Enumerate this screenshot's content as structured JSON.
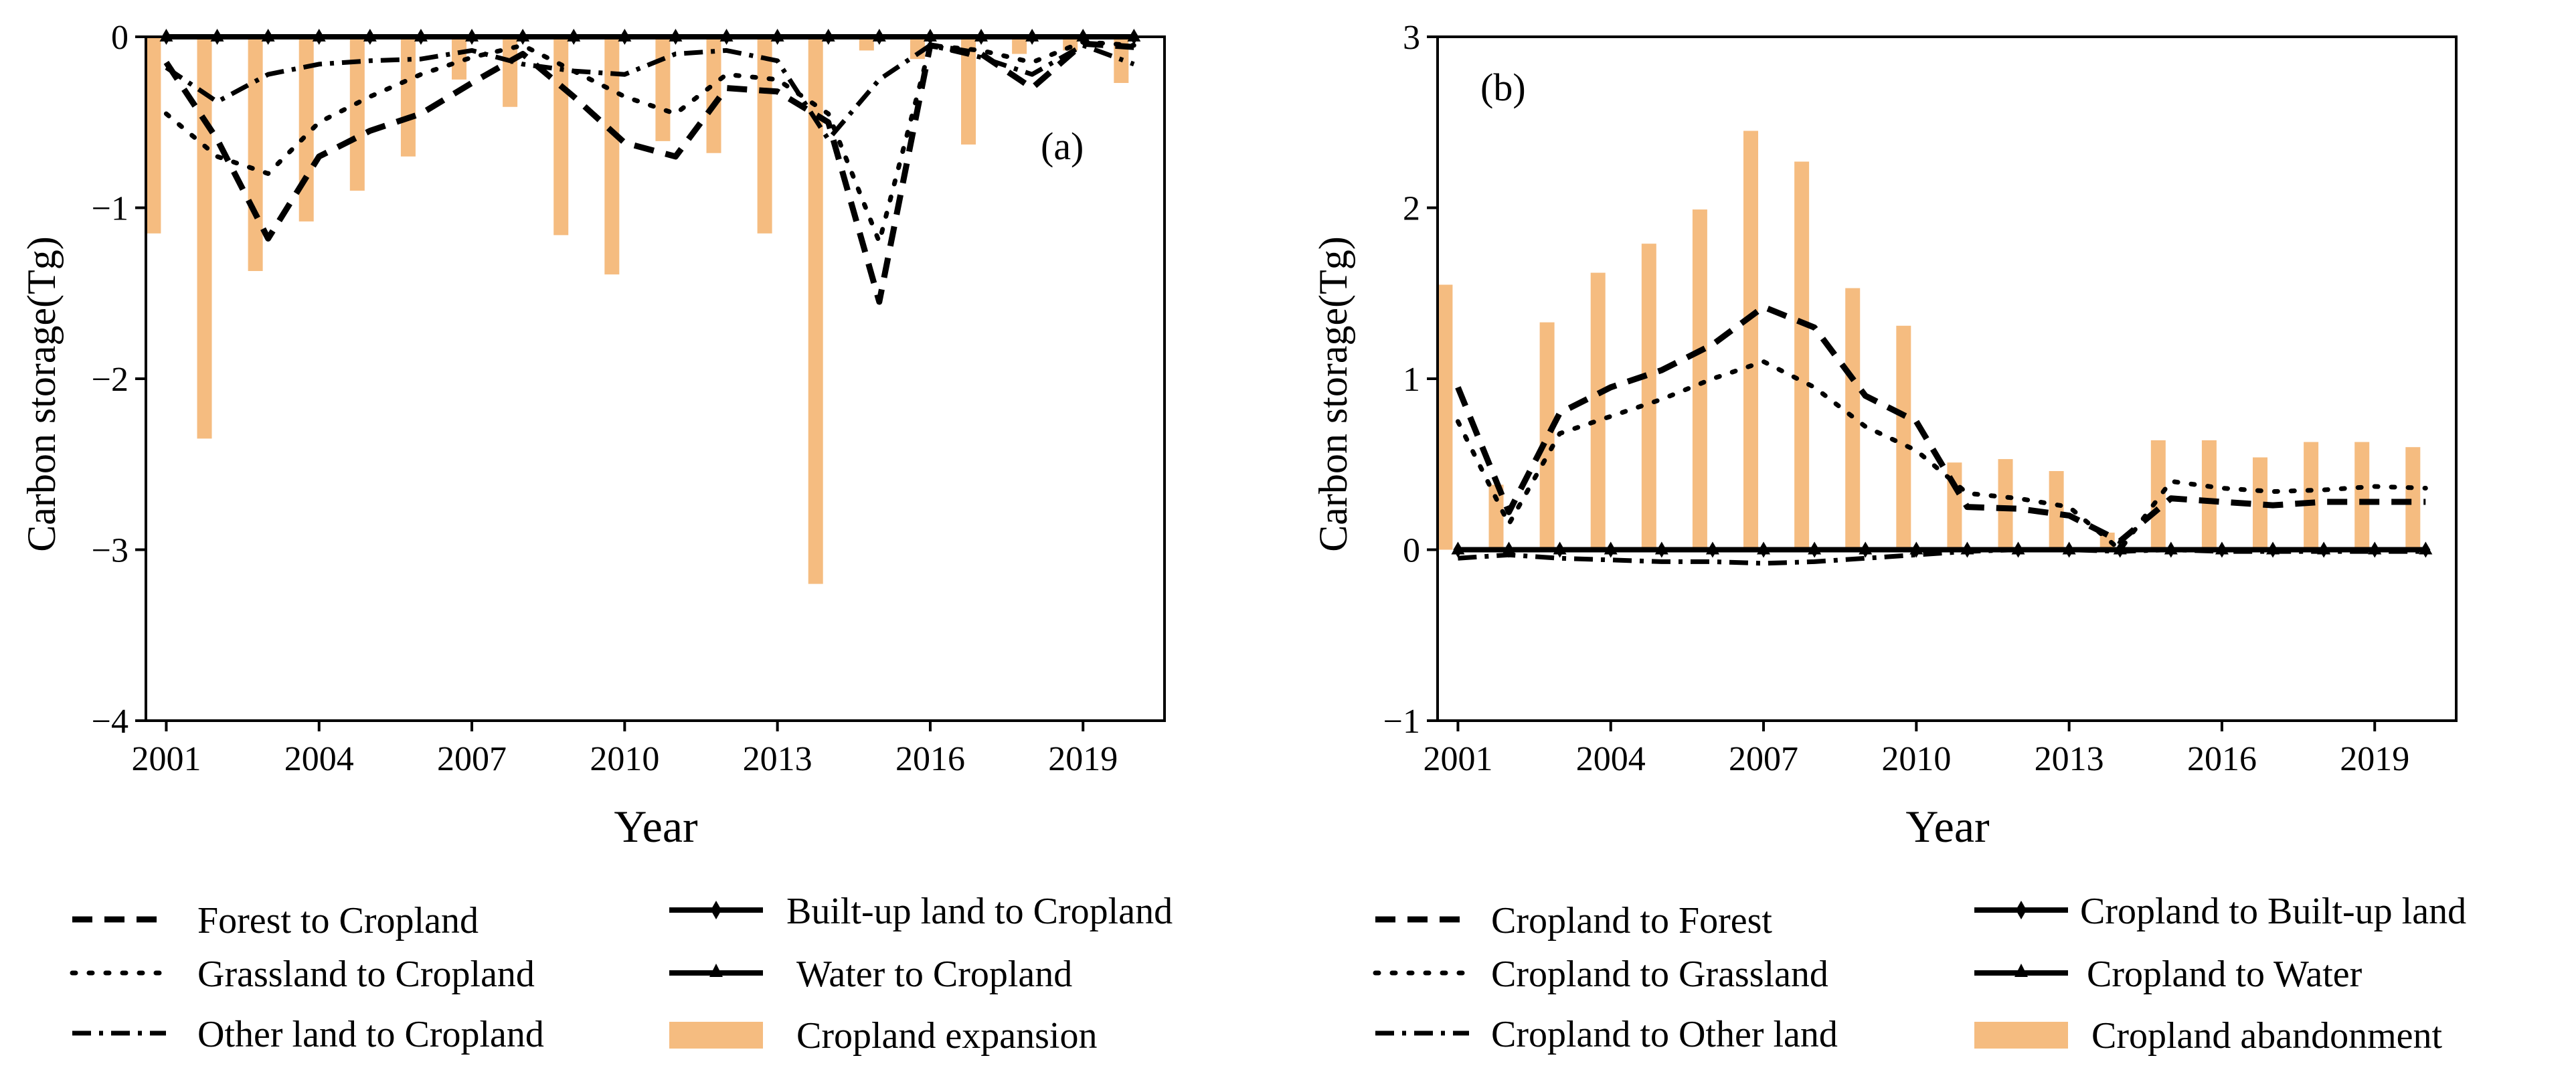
{
  "chart_data": [
    {
      "type": "bar+line",
      "panel_label": "(a)",
      "xlabel": "Year",
      "ylabel": "Carbon storage(Tg)",
      "ylim": [
        -4,
        0
      ],
      "yticks": [
        -4,
        -3,
        -2,
        -1,
        0
      ],
      "ytick_labels": [
        "−4",
        "−3",
        "−2",
        "−1",
        "0"
      ],
      "xlim": [
        2000.6,
        2020.6
      ],
      "xticks": [
        2001,
        2004,
        2007,
        2010,
        2013,
        2016,
        2019
      ],
      "xtick_labels": [
        "2001",
        "2004",
        "2007",
        "2010",
        "2013",
        "2016",
        "2019"
      ],
      "x": [
        2001,
        2002,
        2003,
        2004,
        2005,
        2006,
        2007,
        2008,
        2009,
        2010,
        2011,
        2012,
        2013,
        2014,
        2015,
        2016,
        2017,
        2018,
        2019,
        2020
      ],
      "bars": {
        "name": "Cropland expansion",
        "color": "#f5bc80",
        "x": [
          2000.75,
          2001.75,
          2002.75,
          2003.75,
          2004.75,
          2005.75,
          2006.75,
          2007.75,
          2008.75,
          2009.75,
          2010.75,
          2011.75,
          2012.75,
          2013.75,
          2014.75,
          2015.75,
          2016.75,
          2017.75,
          2018.75,
          2019.75
        ],
        "values": [
          -1.15,
          -2.35,
          -1.37,
          -1.08,
          -0.9,
          -0.7,
          -0.25,
          -0.41,
          -1.16,
          -1.39,
          -0.61,
          -0.68,
          -1.15,
          -3.2,
          -0.08,
          -0.13,
          -0.63,
          -0.1,
          -0.08,
          -0.27
        ]
      },
      "series": [
        {
          "name": "Forest to Cropland",
          "style": "dashed",
          "values": [
            -0.15,
            -0.6,
            -1.18,
            -0.7,
            -0.55,
            -0.45,
            -0.27,
            -0.1,
            -0.35,
            -0.62,
            -0.7,
            -0.3,
            -0.32,
            -0.5,
            -1.55,
            -0.05,
            -0.1,
            -0.3,
            -0.04,
            -0.06
          ]
        },
        {
          "name": "Grassland to Cropland",
          "style": "dotted",
          "values": [
            -0.45,
            -0.7,
            -0.8,
            -0.5,
            -0.35,
            -0.22,
            -0.12,
            -0.05,
            -0.2,
            -0.35,
            -0.45,
            -0.22,
            -0.25,
            -0.45,
            -1.2,
            -0.05,
            -0.08,
            -0.15,
            -0.03,
            -0.05
          ]
        },
        {
          "name": "Other land to Cropland",
          "style": "dashdot",
          "values": [
            -0.18,
            -0.38,
            -0.22,
            -0.16,
            -0.14,
            -0.13,
            -0.08,
            -0.16,
            -0.2,
            -0.22,
            -0.1,
            -0.08,
            -0.14,
            -0.6,
            -0.25,
            -0.05,
            -0.12,
            -0.22,
            -0.05,
            -0.16
          ]
        },
        {
          "name": "Built-up land to Cropland",
          "style": "solid-diamond",
          "values": [
            0,
            0,
            0,
            0,
            0,
            0,
            0,
            0,
            0,
            0,
            0,
            0,
            0,
            0,
            0,
            0,
            0,
            0,
            0,
            0
          ]
        },
        {
          "name": "Water to Cropland",
          "style": "solid-triangle",
          "values": [
            0,
            0,
            0,
            0,
            0,
            0,
            0,
            0,
            0,
            0,
            0,
            0,
            0,
            0,
            0,
            0,
            0,
            0,
            0,
            0
          ]
        }
      ],
      "legend": [
        "Forest to Cropland",
        "Grassland to Cropland",
        "Other land to Cropland",
        "Built-up land to Cropland",
        "Water to Cropland",
        "Cropland expansion"
      ]
    },
    {
      "type": "bar+line",
      "panel_label": "(b)",
      "xlabel": "Year",
      "ylabel": "Carbon storage(Tg)",
      "ylim": [
        -1,
        3
      ],
      "yticks": [
        -1,
        0,
        1,
        2,
        3
      ],
      "ytick_labels": [
        "−1",
        "0",
        "1",
        "2",
        "3"
      ],
      "xlim": [
        2000.6,
        2020.6
      ],
      "xticks": [
        2001,
        2004,
        2007,
        2010,
        2013,
        2016,
        2019
      ],
      "xtick_labels": [
        "2001",
        "2004",
        "2007",
        "2010",
        "2013",
        "2016",
        "2019"
      ],
      "x": [
        2001,
        2002,
        2003,
        2004,
        2005,
        2006,
        2007,
        2008,
        2009,
        2010,
        2011,
        2012,
        2013,
        2014,
        2015,
        2016,
        2017,
        2018,
        2019,
        2020
      ],
      "bars": {
        "name": "Cropland abandonment",
        "color": "#f5bc80",
        "x": [
          2000.75,
          2001.75,
          2002.75,
          2003.75,
          2004.75,
          2005.75,
          2006.75,
          2007.75,
          2008.75,
          2009.75,
          2010.75,
          2011.75,
          2012.75,
          2013.75,
          2014.75,
          2015.75,
          2016.75,
          2017.75,
          2018.75,
          2019.75
        ],
        "values": [
          1.55,
          0.38,
          1.33,
          1.62,
          1.79,
          1.99,
          2.45,
          2.27,
          1.53,
          1.31,
          0.51,
          0.53,
          0.46,
          0.1,
          0.64,
          0.64,
          0.54,
          0.63,
          0.63,
          0.6
        ]
      },
      "series": [
        {
          "name": "Cropland to Forest",
          "style": "dashed",
          "values": [
            0.95,
            0.22,
            0.8,
            0.95,
            1.05,
            1.2,
            1.42,
            1.3,
            0.9,
            0.75,
            0.25,
            0.24,
            0.2,
            0.05,
            0.3,
            0.28,
            0.26,
            0.28,
            0.28,
            0.28
          ]
        },
        {
          "name": "Cropland to Grassland",
          "style": "dotted",
          "values": [
            0.75,
            0.15,
            0.68,
            0.78,
            0.88,
            1.0,
            1.1,
            0.95,
            0.72,
            0.58,
            0.33,
            0.3,
            0.25,
            0.0,
            0.4,
            0.36,
            0.34,
            0.35,
            0.37,
            0.36
          ]
        },
        {
          "name": "Cropland to Other land",
          "style": "dashdot",
          "values": [
            -0.05,
            -0.03,
            -0.05,
            -0.06,
            -0.07,
            -0.07,
            -0.08,
            -0.07,
            -0.05,
            -0.03,
            -0.01,
            0.0,
            0.0,
            -0.01,
            0.0,
            -0.01,
            -0.01,
            -0.01,
            -0.01,
            -0.01
          ]
        },
        {
          "name": "Cropland to Built-up land",
          "style": "solid-diamond",
          "values": [
            0,
            0,
            0,
            0,
            0,
            0,
            0,
            0,
            0,
            0,
            0,
            0,
            0,
            0,
            0,
            0,
            0,
            0,
            0,
            0
          ]
        },
        {
          "name": "Cropland to Water",
          "style": "solid-triangle",
          "values": [
            0,
            0,
            0,
            0,
            0,
            0,
            0,
            0,
            0,
            0,
            0,
            0,
            0,
            0,
            0,
            0,
            0,
            0,
            0,
            0
          ]
        }
      ],
      "legend": [
        "Cropland to Forest",
        "Cropland to Grassland",
        "Cropland to Other land",
        "Cropland to Built-up land",
        "Cropland to Water",
        "Cropland abandonment"
      ]
    }
  ]
}
